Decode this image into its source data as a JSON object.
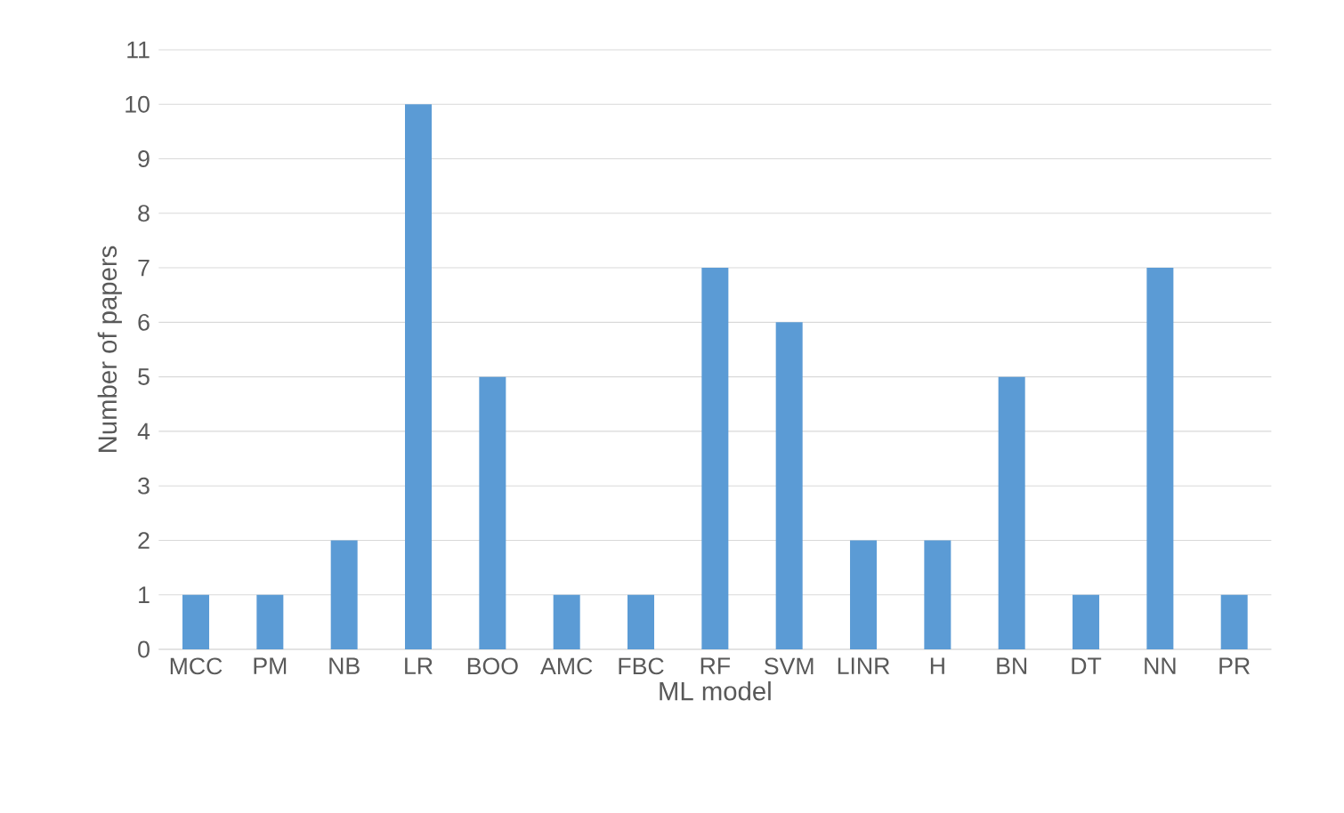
{
  "chart_data": {
    "type": "bar",
    "xlabel": "ML model",
    "ylabel": "Number of papers",
    "categories": [
      "MCC",
      "PM",
      "NB",
      "LR",
      "BOO",
      "AMC",
      "FBC",
      "RF",
      "SVM",
      "LINR",
      "H",
      "BN",
      "DT",
      "NN",
      "PR"
    ],
    "values": [
      1,
      1,
      2,
      10,
      5,
      1,
      1,
      7,
      6,
      2,
      2,
      5,
      1,
      7,
      1
    ],
    "color": "#5b9bd5",
    "ylim": [
      0,
      11
    ],
    "yticks": [
      0,
      1,
      2,
      3,
      4,
      5,
      6,
      7,
      8,
      9,
      10,
      11
    ],
    "grid": "y"
  }
}
